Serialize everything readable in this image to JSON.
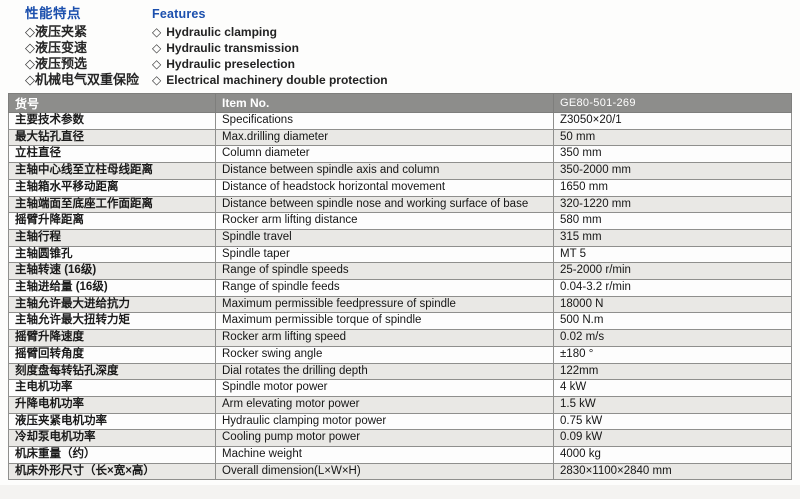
{
  "features_zh": {
    "heading": "性能特点",
    "bullet": "◇",
    "items": [
      "液压夹紧",
      "液压变速",
      "液压预选",
      "机械电气双重保险"
    ]
  },
  "features_en": {
    "heading": "Features",
    "bullet": "◇",
    "items": [
      "Hydraulic clamping",
      "Hydraulic transmission",
      "Hydraulic preselection",
      "Electrical machinery double protection"
    ]
  },
  "table": {
    "header": {
      "zh": "货号",
      "en": "Item No.",
      "value": "GE80-501-269"
    },
    "rows": [
      {
        "zh": "主要技术参数",
        "en": "Specifications",
        "value": "Z3050×20/1"
      },
      {
        "zh": "最大钻孔直径",
        "en": "Max.drilling diameter",
        "value": "50 mm"
      },
      {
        "zh": "立柱直径",
        "en": "Column diameter",
        "value": "350 mm"
      },
      {
        "zh": "主轴中心线至立柱母线距离",
        "en": "Distance between spindle axis and column",
        "value": "350-2000 mm"
      },
      {
        "zh": "主轴箱水平移动距离",
        "en": "Distance of headstock horizontal movement",
        "value": "1650 mm"
      },
      {
        "zh": "主轴端面至底座工作面距离",
        "en": "Distance between spindle nose and working surface of base",
        "value": "320-1220 mm"
      },
      {
        "zh": "摇臂升降距离",
        "en": "Rocker arm lifting distance",
        "value": "580 mm"
      },
      {
        "zh": "主轴行程",
        "en": "Spindle travel",
        "value": "315 mm"
      },
      {
        "zh": "主轴圆锥孔",
        "en": "Spindle taper",
        "value": "MT 5"
      },
      {
        "zh": "主轴转速 (16级)",
        "en": "Range of spindle speeds",
        "value": "25-2000 r/min"
      },
      {
        "zh": "主轴进给量 (16级)",
        "en": "Range of spindle feeds",
        "value": "0.04-3.2 r/min"
      },
      {
        "zh": "主轴允许最大进给抗力",
        "en": "Maximum permissible feedpressure of spindle",
        "value": "18000 N"
      },
      {
        "zh": "主轴允许最大扭转力矩",
        "en": "Maximum permissible torque of spindle",
        "value": "500 N.m"
      },
      {
        "zh": "摇臂升降速度",
        "en": "Rocker arm lifting speed",
        "value": "0.02 m/s"
      },
      {
        "zh": "摇臂回转角度",
        "en": "Rocker swing angle",
        "value": "±180 °"
      },
      {
        "zh": "刻度盘每转钻孔深度",
        "en": "Dial rotates the drilling depth",
        "value": "122mm"
      },
      {
        "zh": "主电机功率",
        "en": "Spindle motor power",
        "value": "4 kW"
      },
      {
        "zh": "升降电机功率",
        "en": "Arm elevating motor power",
        "value": "1.5 kW"
      },
      {
        "zh": "液压夹紧电机功率",
        "en": "Hydraulic clamping motor power",
        "value": "0.75 kW"
      },
      {
        "zh": "冷却泵电机功率",
        "en": "Cooling pump motor power",
        "value": "0.09 kW"
      },
      {
        "zh": "机床重量（约）",
        "en": "Machine weight",
        "value": "4000 kg"
      },
      {
        "zh": "机床外形尺寸（长×宽×高）",
        "en": "Overall dimension(L×W×H)",
        "value": "2830×1100×2840 mm"
      }
    ]
  },
  "colors": {
    "accent_blue": "#1b4fad",
    "table_header_bg": "#8d8d8b",
    "row_alt_bg": "#e9e8e5",
    "border": "#8f8f8d"
  }
}
